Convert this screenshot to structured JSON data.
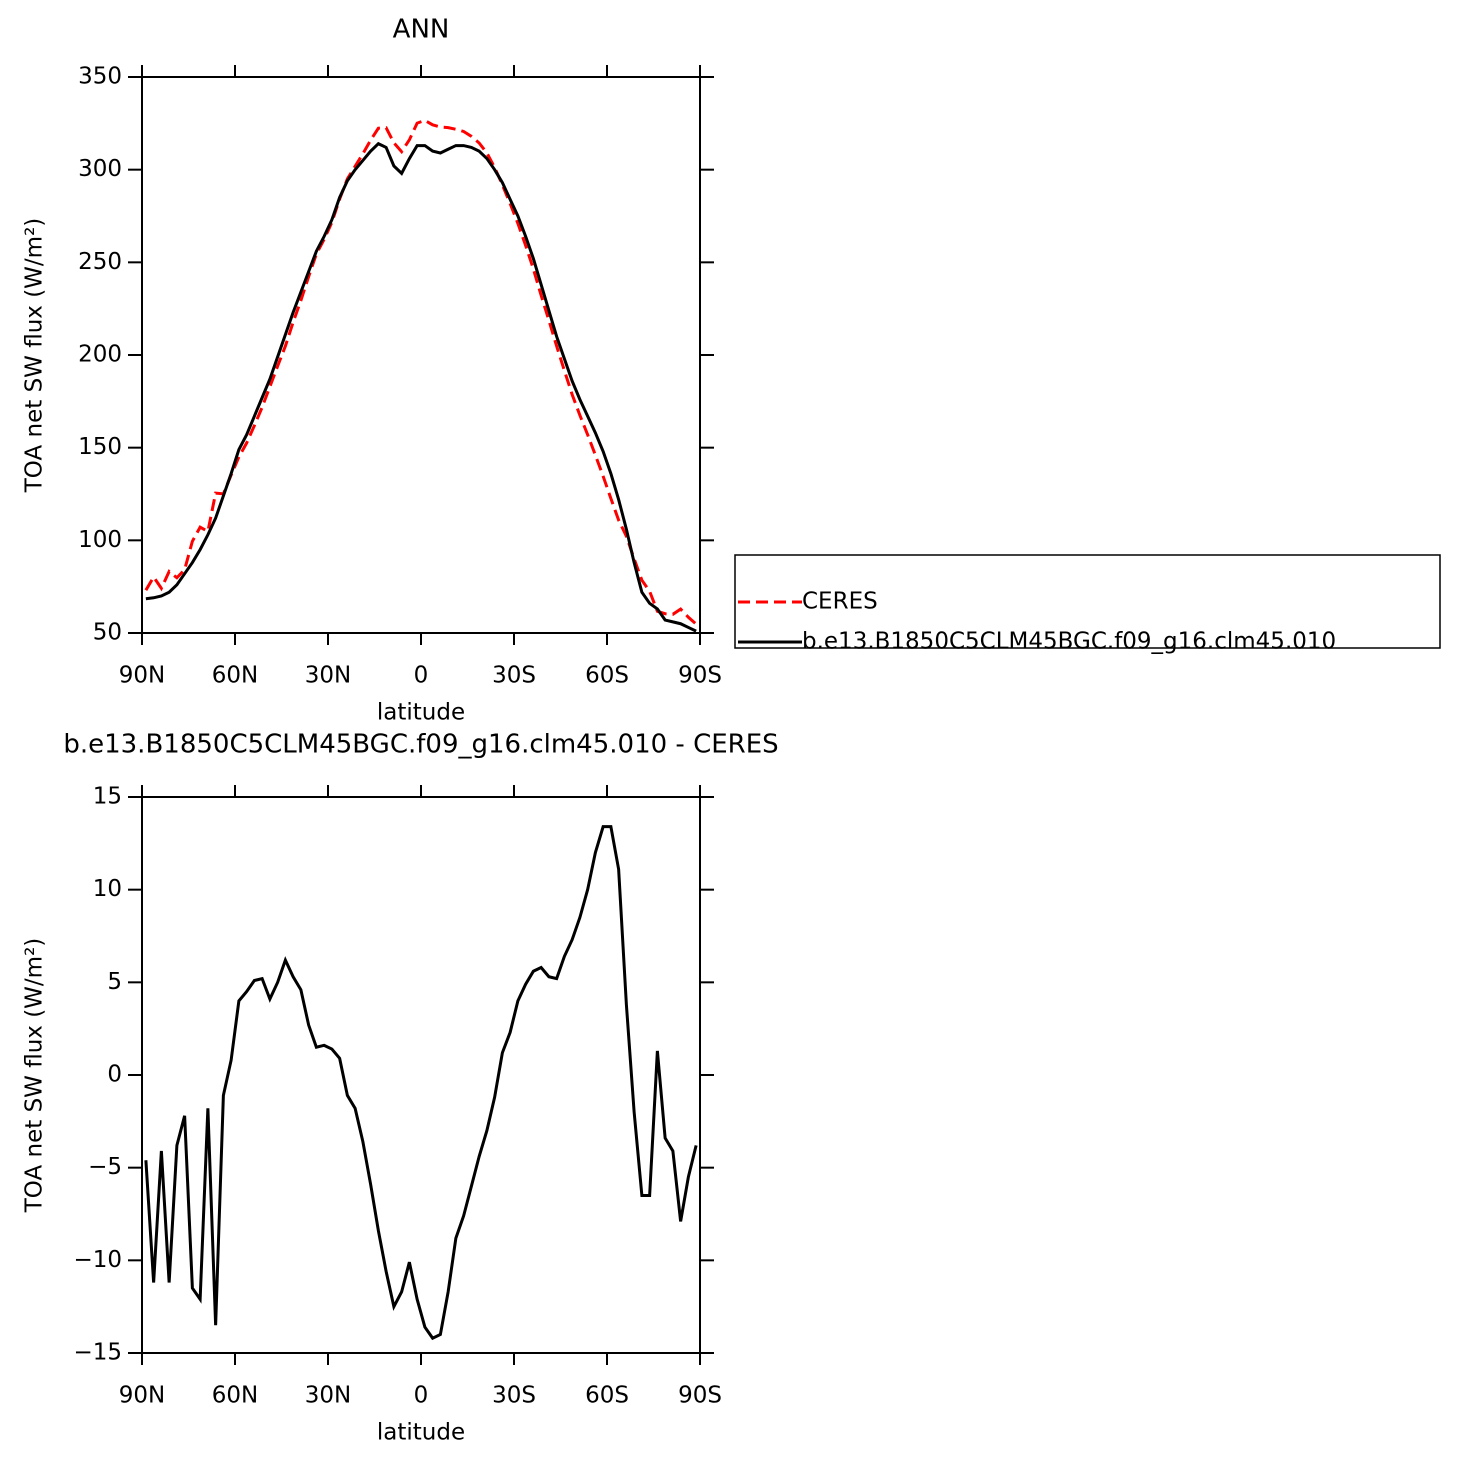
{
  "chart_data": [
    {
      "type": "line",
      "title": "ANN",
      "xlabel": "latitude",
      "ylabel": "TOA net SW flux (W/m²)",
      "x": [
        88.75,
        86.25,
        83.75,
        81.25,
        78.75,
        76.25,
        73.75,
        71.25,
        68.75,
        66.25,
        63.75,
        61.25,
        58.75,
        56.25,
        53.75,
        51.25,
        48.75,
        46.25,
        43.75,
        41.25,
        38.75,
        36.25,
        33.75,
        31.25,
        28.75,
        26.25,
        23.75,
        21.25,
        18.75,
        16.25,
        13.75,
        11.25,
        8.75,
        6.25,
        3.75,
        1.25,
        -1.25,
        -3.75,
        -6.25,
        -8.75,
        -11.25,
        -13.75,
        -16.25,
        -18.75,
        -21.25,
        -23.75,
        -26.25,
        -28.75,
        -31.25,
        -33.75,
        -36.25,
        -38.75,
        -41.25,
        -43.75,
        -46.25,
        -48.75,
        -51.25,
        -53.75,
        -56.25,
        -58.75,
        -61.25,
        -63.75,
        -66.25,
        -68.75,
        -71.25,
        -73.75,
        -76.25,
        -78.75,
        -81.25,
        -83.75,
        -86.25,
        -88.75
      ],
      "series": [
        {
          "name": "CERES",
          "color": "#ff0000",
          "linestyle": "dashed",
          "values": [
            73.1,
            80.2,
            74.1,
            83.2,
            79.8,
            84.2,
            99.5,
            107.1,
            104.8,
            125.5,
            125.1,
            135.2,
            145,
            152.5,
            161.9,
            171.8,
            182.9,
            194,
            204.8,
            217.7,
            229.4,
            242.3,
            254.5,
            262.4,
            271.6,
            284.1,
            295.1,
            301.8,
            308.6,
            315.9,
            322.4,
            322.6,
            314.5,
            309.7,
            316.1,
            325.1,
            326.6,
            324.2,
            323,
            322.7,
            321.8,
            320.6,
            318,
            314.4,
            309,
            301.2,
            291.8,
            281.7,
            271,
            259.1,
            246.4,
            232.2,
            218.7,
            204.8,
            191.6,
            178.7,
            167.5,
            157,
            146,
            134.6,
            122.6,
            110.9,
            102.2,
            90,
            78.5,
            72.5,
            61.7,
            60.4,
            60.1,
            62.9,
            58.5,
            54.8
          ]
        },
        {
          "name": "b.e13.B1850C5CLM45BGC.f09_g16.clm45.010",
          "color": "#000000",
          "linestyle": "solid",
          "values": [
            68.5,
            69,
            70,
            72,
            76,
            82,
            88,
            95,
            103,
            112,
            124,
            136,
            149,
            157,
            167,
            177,
            187,
            199,
            211,
            223,
            234,
            245,
            256,
            264,
            273,
            285,
            294,
            300,
            305,
            310,
            314,
            312,
            302,
            298,
            306,
            313,
            313,
            310,
            309,
            311,
            313,
            313,
            312,
            310,
            306,
            300,
            293,
            284,
            275,
            264,
            252,
            238,
            224,
            210,
            198,
            186,
            176,
            167,
            158,
            148,
            136,
            122,
            106,
            88,
            72,
            66,
            63,
            57,
            56,
            55,
            53,
            51
          ]
        }
      ],
      "xlim": [
        90,
        -90
      ],
      "xticks": [
        {
          "value": 90,
          "label": "90N"
        },
        {
          "value": 60,
          "label": "60N"
        },
        {
          "value": 30,
          "label": "30N"
        },
        0,
        {
          "value": -30,
          "label": "30S"
        },
        {
          "value": -60,
          "label": "60S"
        },
        {
          "value": -90,
          "label": "90S"
        }
      ],
      "ylim": [
        50,
        350
      ],
      "yticks": [
        50,
        100,
        150,
        200,
        250,
        300,
        350
      ],
      "legend": "right"
    },
    {
      "type": "line",
      "title": "b.e13.B1850C5CLM45BGC.f09_g16.clm45.010 - CERES",
      "xlabel": "latitude",
      "ylabel": "TOA net SW flux (W/m²)",
      "x": [
        88.75,
        86.25,
        83.75,
        81.25,
        78.75,
        76.25,
        73.75,
        71.25,
        68.75,
        66.25,
        63.75,
        61.25,
        58.75,
        56.25,
        53.75,
        51.25,
        48.75,
        46.25,
        43.75,
        41.25,
        38.75,
        36.25,
        33.75,
        31.25,
        28.75,
        26.25,
        23.75,
        21.25,
        18.75,
        16.25,
        13.75,
        11.25,
        8.75,
        6.25,
        3.75,
        1.25,
        -1.25,
        -3.75,
        -6.25,
        -8.75,
        -11.25,
        -13.75,
        -16.25,
        -18.75,
        -21.25,
        -23.75,
        -26.25,
        -28.75,
        -31.25,
        -33.75,
        -36.25,
        -38.75,
        -41.25,
        -43.75,
        -46.25,
        -48.75,
        -51.25,
        -53.75,
        -56.25,
        -58.75,
        -61.25,
        -63.75,
        -66.25,
        -68.75,
        -71.25,
        -73.75,
        -76.25,
        -78.75,
        -81.25,
        -83.75,
        -86.25,
        -88.75
      ],
      "series": [
        {
          "color": "#000000",
          "linestyle": "solid",
          "values": [
            -4.6,
            -11.2,
            -4.1,
            -11.2,
            -3.8,
            -2.2,
            -11.5,
            -12.1,
            -1.8,
            -13.5,
            -1.1,
            0.8,
            4.0,
            4.5,
            5.1,
            5.2,
            4.1,
            5.0,
            6.2,
            5.3,
            4.6,
            2.7,
            1.5,
            1.6,
            1.4,
            0.9,
            -1.1,
            -1.8,
            -3.6,
            -5.9,
            -8.4,
            -10.6,
            -12.5,
            -11.7,
            -10.1,
            -12.1,
            -13.6,
            -14.2,
            -14.0,
            -11.7,
            -8.8,
            -7.6,
            -6.0,
            -4.4,
            -3.0,
            -1.2,
            1.2,
            2.3,
            4.0,
            4.9,
            5.6,
            5.8,
            5.3,
            5.2,
            6.4,
            7.3,
            8.5,
            10.0,
            12.0,
            13.4,
            13.4,
            11.1,
            3.8,
            -2.0,
            -6.5,
            -6.5,
            1.3,
            -3.4,
            -4.1,
            -7.9,
            -5.5,
            -3.8
          ]
        }
      ],
      "xlim": [
        90,
        -90
      ],
      "xticks": [
        {
          "value": 90,
          "label": "90N"
        },
        {
          "value": 60,
          "label": "60N"
        },
        {
          "value": 30,
          "label": "30N"
        },
        0,
        {
          "value": -30,
          "label": "30S"
        },
        {
          "value": -60,
          "label": "60S"
        },
        {
          "value": -90,
          "label": "90S"
        }
      ],
      "ylim": [
        -15,
        15
      ],
      "yticks": [
        {
          "value": -15,
          "label": "−15"
        },
        {
          "value": -10,
          "label": "−10"
        },
        {
          "value": -5,
          "label": "−5"
        },
        0,
        5,
        10,
        15
      ]
    }
  ]
}
